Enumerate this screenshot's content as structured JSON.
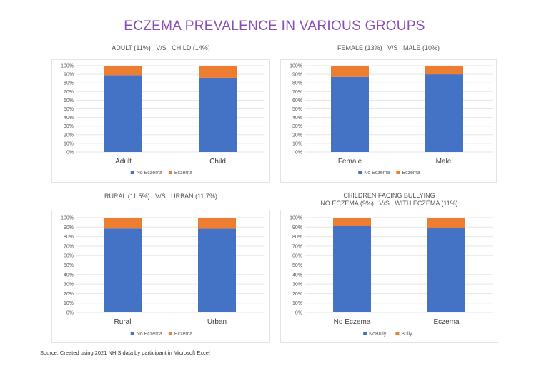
{
  "title": "ECZEMA PREVALENCE IN VARIOUS GROUPS",
  "source": "Source: Created using 2021 NHIS data by participant in Microsoft Excel",
  "colors": {
    "title": "#8a4fb5",
    "series1": "#4472c4",
    "series2": "#ed7d31",
    "grid": "#e6e6e6",
    "axis_text": "#595959"
  },
  "chart_data": [
    {
      "type": "bar",
      "stacked": "percent",
      "title": "ADULT (11%)   V/S   CHILD (14%)",
      "categories": [
        "Adult",
        "Child"
      ],
      "series": [
        {
          "name": "No Eczema",
          "values": [
            89,
            86
          ]
        },
        {
          "name": "Eczema",
          "values": [
            11,
            14
          ]
        }
      ],
      "ylim": [
        0,
        100
      ],
      "yticks": [
        "0%",
        "10%",
        "20%",
        "30%",
        "40%",
        "50%",
        "60%",
        "70%",
        "80%",
        "90%",
        "100%"
      ],
      "grid": true,
      "legend": "bottom"
    },
    {
      "type": "bar",
      "stacked": "percent",
      "title": "FEMALE (13%)   V/S   MALE (10%)",
      "categories": [
        "Female",
        "Male"
      ],
      "series": [
        {
          "name": "No Eczema",
          "values": [
            87,
            90
          ]
        },
        {
          "name": "Eczema",
          "values": [
            13,
            10
          ]
        }
      ],
      "ylim": [
        0,
        100
      ],
      "yticks": [
        "0%",
        "10%",
        "20%",
        "30%",
        "40%",
        "50%",
        "60%",
        "70%",
        "80%",
        "90%",
        "100%"
      ],
      "grid": true,
      "legend": "bottom"
    },
    {
      "type": "bar",
      "stacked": "percent",
      "title": "RURAL (11.5%)   V/S   URBAN (11.7%)",
      "categories": [
        "Rural",
        "Urban"
      ],
      "series": [
        {
          "name": "No Eczema",
          "values": [
            88.5,
            88.3
          ]
        },
        {
          "name": "Eczema",
          "values": [
            11.5,
            11.7
          ]
        }
      ],
      "ylim": [
        0,
        100
      ],
      "yticks": [
        "0%",
        "10%",
        "20%",
        "30%",
        "40%",
        "50%",
        "60%",
        "70%",
        "80%",
        "90%",
        "100%"
      ],
      "grid": true,
      "legend": "bottom"
    },
    {
      "type": "bar",
      "stacked": "percent",
      "title": "CHILDREN FACING BULLYING\nNO ECZEMA (9%)   V/S   WITH ECZEMA (11%)",
      "categories": [
        "No Eczema",
        "Eczema"
      ],
      "series": [
        {
          "name": "NoBully",
          "values": [
            91,
            89
          ]
        },
        {
          "name": "Bully",
          "values": [
            9,
            11
          ]
        }
      ],
      "ylim": [
        0,
        100
      ],
      "yticks": [
        "0%",
        "10%",
        "20%",
        "30%",
        "40%",
        "50%",
        "60%",
        "70%",
        "80%",
        "90%",
        "100%"
      ],
      "grid": true,
      "legend": "bottom"
    }
  ]
}
